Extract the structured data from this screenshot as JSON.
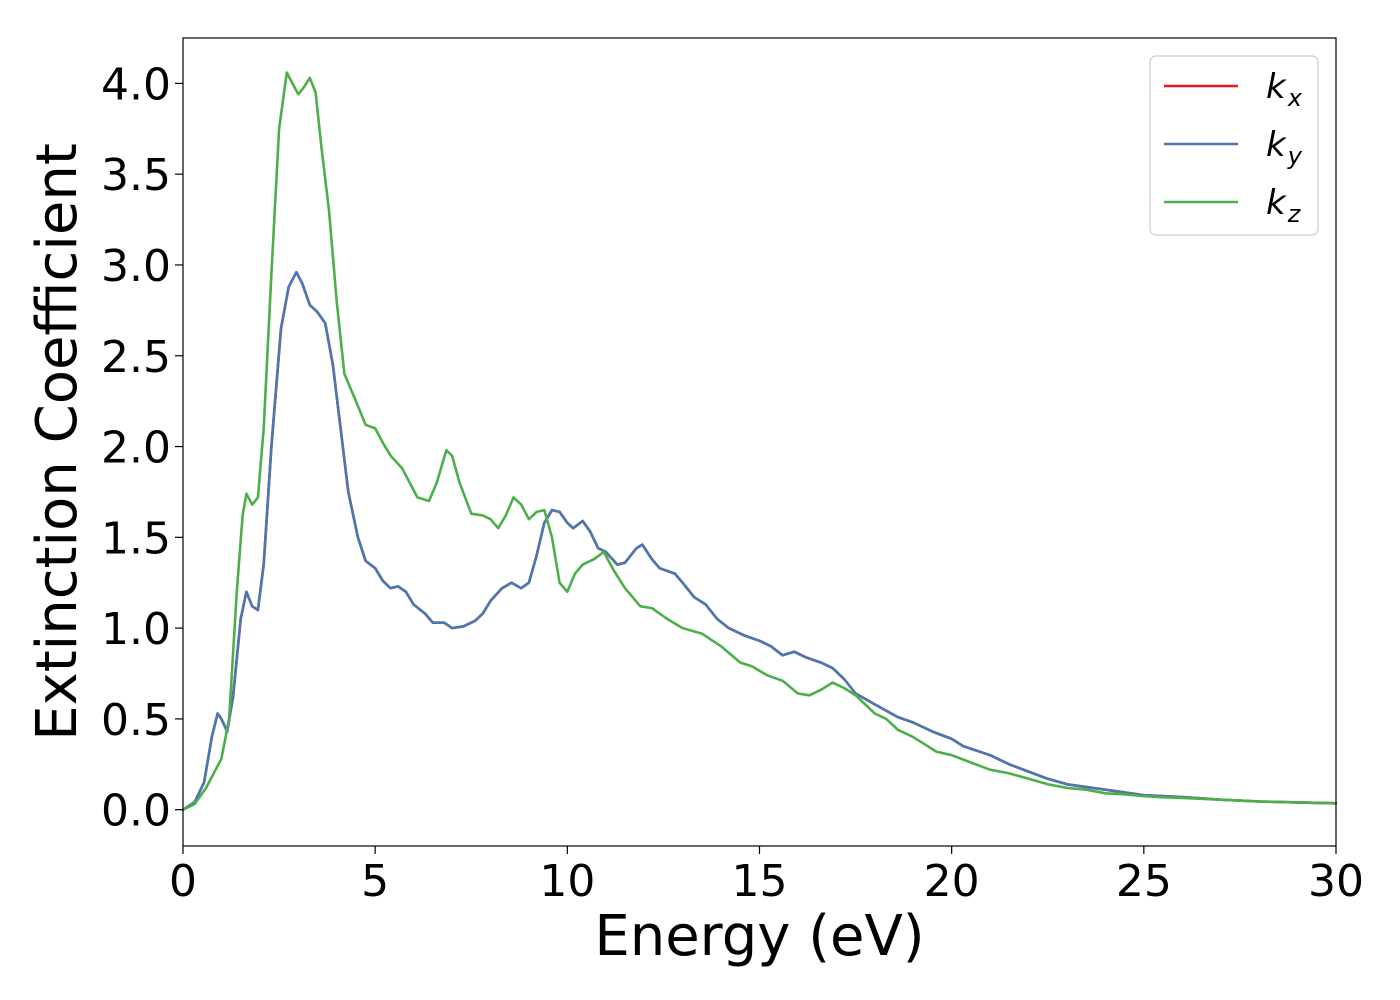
{
  "chart_data": {
    "type": "line",
    "xlabel": "Energy (eV)",
    "ylabel": "Extinction Coefficient",
    "xlim": [
      0,
      30
    ],
    "ylim": [
      -0.2,
      4.25
    ],
    "x_ticks": [
      "0",
      "5",
      "10",
      "15",
      "20",
      "25",
      "30"
    ],
    "y_ticks": [
      "0.0",
      "0.5",
      "1.0",
      "1.5",
      "2.0",
      "2.5",
      "3.0",
      "3.5",
      "4.0"
    ],
    "grid": false,
    "legend_position": "top-right",
    "series": [
      {
        "name": "k_x",
        "label_base": "k",
        "label_sub": "x",
        "color": "#e41a1c",
        "points": [
          [
            0,
            0
          ],
          [
            0.3,
            0.04
          ],
          [
            0.55,
            0.15
          ],
          [
            0.75,
            0.4
          ],
          [
            0.9,
            0.53
          ],
          [
            1.0,
            0.5
          ],
          [
            1.15,
            0.43
          ],
          [
            1.3,
            0.62
          ],
          [
            1.5,
            1.05
          ],
          [
            1.65,
            1.2
          ],
          [
            1.8,
            1.12
          ],
          [
            1.95,
            1.1
          ],
          [
            2.1,
            1.35
          ],
          [
            2.3,
            2.0
          ],
          [
            2.55,
            2.65
          ],
          [
            2.75,
            2.88
          ],
          [
            2.95,
            2.96
          ],
          [
            3.1,
            2.9
          ],
          [
            3.3,
            2.78
          ],
          [
            3.5,
            2.74
          ],
          [
            3.7,
            2.68
          ],
          [
            3.9,
            2.45
          ],
          [
            4.1,
            2.1
          ],
          [
            4.3,
            1.75
          ],
          [
            4.55,
            1.5
          ],
          [
            4.75,
            1.37
          ],
          [
            5.0,
            1.33
          ],
          [
            5.2,
            1.26
          ],
          [
            5.4,
            1.22
          ],
          [
            5.6,
            1.23
          ],
          [
            5.8,
            1.2
          ],
          [
            6.0,
            1.13
          ],
          [
            6.3,
            1.08
          ],
          [
            6.5,
            1.03
          ],
          [
            6.8,
            1.03
          ],
          [
            7.0,
            1.0
          ],
          [
            7.3,
            1.01
          ],
          [
            7.6,
            1.04
          ],
          [
            7.8,
            1.08
          ],
          [
            8.0,
            1.15
          ],
          [
            8.3,
            1.22
          ],
          [
            8.55,
            1.25
          ],
          [
            8.8,
            1.22
          ],
          [
            9.0,
            1.25
          ],
          [
            9.2,
            1.4
          ],
          [
            9.4,
            1.58
          ],
          [
            9.6,
            1.65
          ],
          [
            9.8,
            1.64
          ],
          [
            10.0,
            1.58
          ],
          [
            10.15,
            1.55
          ],
          [
            10.4,
            1.59
          ],
          [
            10.6,
            1.53
          ],
          [
            10.8,
            1.44
          ],
          [
            11.0,
            1.42
          ],
          [
            11.3,
            1.35
          ],
          [
            11.5,
            1.36
          ],
          [
            11.8,
            1.44
          ],
          [
            11.95,
            1.46
          ],
          [
            12.2,
            1.38
          ],
          [
            12.4,
            1.33
          ],
          [
            12.8,
            1.3
          ],
          [
            13.0,
            1.25
          ],
          [
            13.3,
            1.17
          ],
          [
            13.6,
            1.13
          ],
          [
            13.9,
            1.05
          ],
          [
            14.2,
            1.0
          ],
          [
            14.6,
            0.96
          ],
          [
            15.0,
            0.93
          ],
          [
            15.3,
            0.9
          ],
          [
            15.6,
            0.85
          ],
          [
            15.9,
            0.87
          ],
          [
            16.2,
            0.84
          ],
          [
            16.6,
            0.81
          ],
          [
            16.9,
            0.78
          ],
          [
            17.2,
            0.72
          ],
          [
            17.5,
            0.64
          ],
          [
            18.0,
            0.58
          ],
          [
            18.6,
            0.51
          ],
          [
            19.0,
            0.48
          ],
          [
            19.5,
            0.43
          ],
          [
            20.0,
            0.39
          ],
          [
            20.3,
            0.35
          ],
          [
            21.0,
            0.3
          ],
          [
            21.5,
            0.25
          ],
          [
            22.0,
            0.21
          ],
          [
            22.5,
            0.17
          ],
          [
            23.0,
            0.14
          ],
          [
            24.0,
            0.11
          ],
          [
            25.0,
            0.08
          ],
          [
            26.0,
            0.07
          ],
          [
            27.0,
            0.055
          ],
          [
            28.0,
            0.045
          ],
          [
            29.0,
            0.04
          ],
          [
            30.0,
            0.035
          ]
        ]
      },
      {
        "name": "k_y",
        "label_base": "k",
        "label_sub": "y",
        "color": "#4a78b0",
        "points": [
          [
            0,
            0
          ],
          [
            0.3,
            0.04
          ],
          [
            0.55,
            0.15
          ],
          [
            0.75,
            0.4
          ],
          [
            0.9,
            0.53
          ],
          [
            1.0,
            0.5
          ],
          [
            1.15,
            0.43
          ],
          [
            1.3,
            0.62
          ],
          [
            1.5,
            1.05
          ],
          [
            1.65,
            1.2
          ],
          [
            1.8,
            1.12
          ],
          [
            1.95,
            1.1
          ],
          [
            2.1,
            1.35
          ],
          [
            2.3,
            2.0
          ],
          [
            2.55,
            2.65
          ],
          [
            2.75,
            2.88
          ],
          [
            2.95,
            2.96
          ],
          [
            3.1,
            2.9
          ],
          [
            3.3,
            2.78
          ],
          [
            3.5,
            2.74
          ],
          [
            3.7,
            2.68
          ],
          [
            3.9,
            2.45
          ],
          [
            4.1,
            2.1
          ],
          [
            4.3,
            1.75
          ],
          [
            4.55,
            1.5
          ],
          [
            4.75,
            1.37
          ],
          [
            5.0,
            1.33
          ],
          [
            5.2,
            1.26
          ],
          [
            5.4,
            1.22
          ],
          [
            5.6,
            1.23
          ],
          [
            5.8,
            1.2
          ],
          [
            6.0,
            1.13
          ],
          [
            6.3,
            1.08
          ],
          [
            6.5,
            1.03
          ],
          [
            6.8,
            1.03
          ],
          [
            7.0,
            1.0
          ],
          [
            7.3,
            1.01
          ],
          [
            7.6,
            1.04
          ],
          [
            7.8,
            1.08
          ],
          [
            8.0,
            1.15
          ],
          [
            8.3,
            1.22
          ],
          [
            8.55,
            1.25
          ],
          [
            8.8,
            1.22
          ],
          [
            9.0,
            1.25
          ],
          [
            9.2,
            1.4
          ],
          [
            9.4,
            1.58
          ],
          [
            9.6,
            1.65
          ],
          [
            9.8,
            1.64
          ],
          [
            10.0,
            1.58
          ],
          [
            10.15,
            1.55
          ],
          [
            10.4,
            1.59
          ],
          [
            10.6,
            1.53
          ],
          [
            10.8,
            1.44
          ],
          [
            11.0,
            1.42
          ],
          [
            11.3,
            1.35
          ],
          [
            11.5,
            1.36
          ],
          [
            11.8,
            1.44
          ],
          [
            11.95,
            1.46
          ],
          [
            12.2,
            1.38
          ],
          [
            12.4,
            1.33
          ],
          [
            12.8,
            1.3
          ],
          [
            13.0,
            1.25
          ],
          [
            13.3,
            1.17
          ],
          [
            13.6,
            1.13
          ],
          [
            13.9,
            1.05
          ],
          [
            14.2,
            1.0
          ],
          [
            14.6,
            0.96
          ],
          [
            15.0,
            0.93
          ],
          [
            15.3,
            0.9
          ],
          [
            15.6,
            0.85
          ],
          [
            15.9,
            0.87
          ],
          [
            16.2,
            0.84
          ],
          [
            16.6,
            0.81
          ],
          [
            16.9,
            0.78
          ],
          [
            17.2,
            0.72
          ],
          [
            17.5,
            0.64
          ],
          [
            18.0,
            0.58
          ],
          [
            18.6,
            0.51
          ],
          [
            19.0,
            0.48
          ],
          [
            19.5,
            0.43
          ],
          [
            20.0,
            0.39
          ],
          [
            20.3,
            0.35
          ],
          [
            21.0,
            0.3
          ],
          [
            21.5,
            0.25
          ],
          [
            22.0,
            0.21
          ],
          [
            22.5,
            0.17
          ],
          [
            23.0,
            0.14
          ],
          [
            24.0,
            0.11
          ],
          [
            25.0,
            0.08
          ],
          [
            26.0,
            0.07
          ],
          [
            27.0,
            0.055
          ],
          [
            28.0,
            0.045
          ],
          [
            29.0,
            0.04
          ],
          [
            30.0,
            0.035
          ]
        ]
      },
      {
        "name": "k_z",
        "label_base": "k",
        "label_sub": "z",
        "color": "#4daf4a",
        "points": [
          [
            0,
            0
          ],
          [
            0.3,
            0.03
          ],
          [
            0.6,
            0.12
          ],
          [
            0.8,
            0.2
          ],
          [
            1.0,
            0.28
          ],
          [
            1.2,
            0.5
          ],
          [
            1.4,
            1.2
          ],
          [
            1.55,
            1.62
          ],
          [
            1.65,
            1.74
          ],
          [
            1.8,
            1.68
          ],
          [
            1.95,
            1.72
          ],
          [
            2.1,
            2.1
          ],
          [
            2.3,
            2.95
          ],
          [
            2.5,
            3.75
          ],
          [
            2.7,
            4.06
          ],
          [
            2.85,
            4.0
          ],
          [
            3.0,
            3.94
          ],
          [
            3.15,
            3.98
          ],
          [
            3.3,
            4.03
          ],
          [
            3.45,
            3.95
          ],
          [
            3.6,
            3.65
          ],
          [
            3.8,
            3.3
          ],
          [
            4.0,
            2.8
          ],
          [
            4.2,
            2.4
          ],
          [
            4.5,
            2.25
          ],
          [
            4.75,
            2.12
          ],
          [
            5.0,
            2.1
          ],
          [
            5.2,
            2.02
          ],
          [
            5.4,
            1.95
          ],
          [
            5.7,
            1.88
          ],
          [
            5.9,
            1.8
          ],
          [
            6.1,
            1.72
          ],
          [
            6.4,
            1.7
          ],
          [
            6.6,
            1.8
          ],
          [
            6.85,
            1.98
          ],
          [
            7.0,
            1.95
          ],
          [
            7.2,
            1.8
          ],
          [
            7.5,
            1.63
          ],
          [
            7.8,
            1.62
          ],
          [
            8.0,
            1.6
          ],
          [
            8.2,
            1.55
          ],
          [
            8.4,
            1.62
          ],
          [
            8.6,
            1.72
          ],
          [
            8.8,
            1.68
          ],
          [
            9.0,
            1.6
          ],
          [
            9.2,
            1.64
          ],
          [
            9.4,
            1.65
          ],
          [
            9.6,
            1.5
          ],
          [
            9.8,
            1.25
          ],
          [
            10.0,
            1.2
          ],
          [
            10.2,
            1.3
          ],
          [
            10.4,
            1.35
          ],
          [
            10.7,
            1.38
          ],
          [
            10.95,
            1.42
          ],
          [
            11.2,
            1.32
          ],
          [
            11.5,
            1.22
          ],
          [
            11.9,
            1.12
          ],
          [
            12.2,
            1.11
          ],
          [
            12.6,
            1.05
          ],
          [
            13.0,
            1.0
          ],
          [
            13.5,
            0.97
          ],
          [
            14.0,
            0.9
          ],
          [
            14.5,
            0.81
          ],
          [
            14.8,
            0.79
          ],
          [
            15.2,
            0.74
          ],
          [
            15.6,
            0.71
          ],
          [
            16.0,
            0.64
          ],
          [
            16.3,
            0.63
          ],
          [
            16.6,
            0.66
          ],
          [
            16.9,
            0.7
          ],
          [
            17.2,
            0.67
          ],
          [
            17.5,
            0.63
          ],
          [
            18.0,
            0.53
          ],
          [
            18.3,
            0.5
          ],
          [
            18.6,
            0.44
          ],
          [
            19.0,
            0.4
          ],
          [
            19.3,
            0.36
          ],
          [
            19.6,
            0.32
          ],
          [
            20.0,
            0.3
          ],
          [
            20.5,
            0.26
          ],
          [
            21.0,
            0.22
          ],
          [
            21.5,
            0.2
          ],
          [
            22.0,
            0.17
          ],
          [
            22.5,
            0.14
          ],
          [
            23.0,
            0.12
          ],
          [
            23.5,
            0.11
          ],
          [
            24.0,
            0.09
          ],
          [
            24.5,
            0.085
          ],
          [
            25.0,
            0.075
          ],
          [
            25.5,
            0.068
          ],
          [
            26.0,
            0.065
          ],
          [
            27.0,
            0.055
          ],
          [
            28.0,
            0.045
          ],
          [
            29.0,
            0.04
          ],
          [
            30.0,
            0.035
          ]
        ]
      }
    ]
  }
}
